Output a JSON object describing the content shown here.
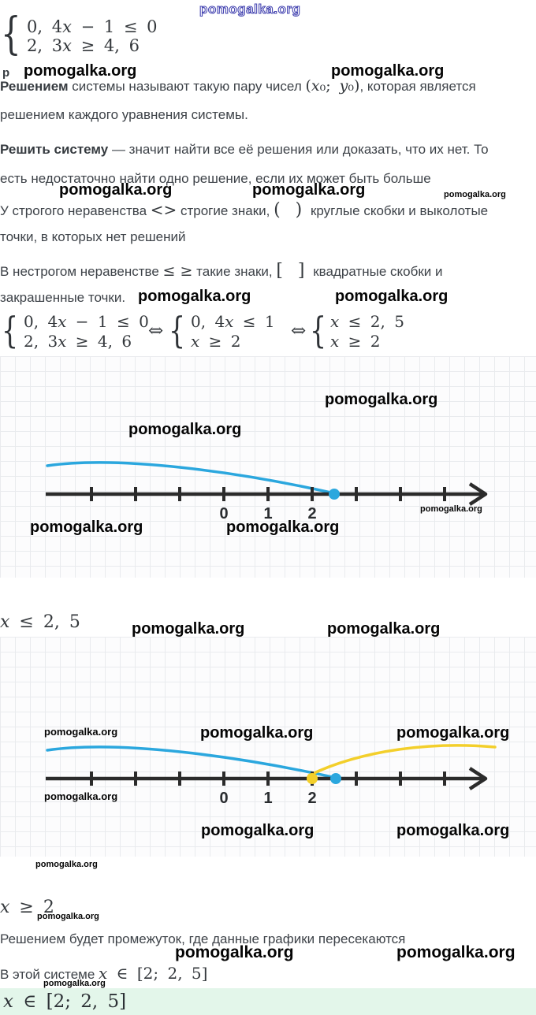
{
  "watermark": {
    "text": "pomogalka.org"
  },
  "colors": {
    "curve_blue": "#2ba7de",
    "curve_yellow": "#f3cf2b",
    "axis": "#2b2b2b",
    "band_bg": "#e3f6ea"
  },
  "stray": "р",
  "systems": {
    "brace": "{",
    "equiv_symbol": "⇔",
    "top": {
      "line1": "0, 4x − 1 ≤ 0",
      "line2": "2, 3x ≥ 4, 6"
    },
    "b": {
      "line1": "0, 4x ≤ 1",
      "line2": "x ≥ 2"
    },
    "c": {
      "line1": "x ≤ 2, 5",
      "line2": "x ≥ 2"
    }
  },
  "paragraphs": {
    "p1_bold": "Решением",
    "p1_rest1": " системы называют такую пару чисел ",
    "p1_math": "(x₀; y₀)",
    "p1_rest2": ", которая является",
    "p1_line2": "решением каждого уравнения системы.",
    "p2_bold": "Решить систему",
    "p2_rest1": " — значит найти все её решения или доказать, что их нет. То",
    "p2_line2": "есть недостаточно найти одно решение, если их может быть больше",
    "p3_a": "У строгого неравенства ",
    "p3_sym1": "<>",
    "p3_b": " строгие знаки, ",
    "p3_sym2": "( )",
    "p3_c": " круглые скобки и выколотые",
    "p3_line2": "точки, в которых нет решений",
    "p4_a": "В нестрогом неравенстве ",
    "p4_sym1": "≤ ≥",
    "p4_b": " такие знаки, ",
    "p4_sym2": "[ ]",
    "p4_c": " квадратные скобки и",
    "p4_line2": "закрашенные точки.",
    "conclusion": "Решением будет промежуток, где данные графики пересекаются",
    "result_prefix": "В этой системе ",
    "result_math": "x ∈ [2; 2, 5]"
  },
  "between": {
    "ineq1": "x ≤ 2, 5",
    "ineq2": "x ≥ 2"
  },
  "graphs": {
    "g1": {
      "ticks": [
        "0",
        "1",
        "2"
      ],
      "blue_point": "2,5"
    },
    "g2": {
      "ticks": [
        "0",
        "1",
        "2"
      ],
      "yellow_point": "2",
      "blue_point": "2,5"
    }
  },
  "answer": {
    "math": "x ∈ [2; 2, 5]"
  }
}
